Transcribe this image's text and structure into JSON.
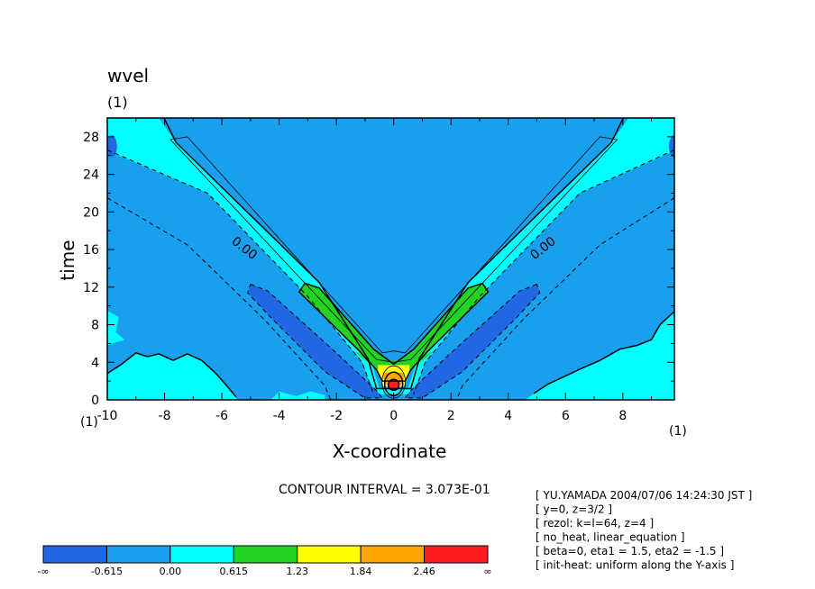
{
  "chart_data": {
    "type": "heatmap",
    "title": "wvel",
    "title_unit": "(1)",
    "xlabel": "X-coordinate",
    "ylabel": "time",
    "x_unit": "(1)",
    "y_unit": "(1)",
    "xlim": [
      -10,
      9.8
    ],
    "ylim": [
      0,
      30
    ],
    "x_ticks": [
      -10,
      -8,
      -6,
      -4,
      -2,
      0,
      2,
      4,
      6,
      8
    ],
    "x_tick_labels": [
      "-10",
      "-8",
      "-6",
      "-4",
      "-2",
      "0",
      "2",
      "4",
      "6",
      "8"
    ],
    "y_ticks": [
      0,
      4,
      8,
      12,
      16,
      20,
      24,
      28
    ],
    "y_tick_labels": [
      "0",
      "4",
      "8",
      "12",
      "16",
      "20",
      "24",
      "28"
    ],
    "contour_labels": [
      {
        "text": "0.00",
        "x": -5.3,
        "y": 15.8,
        "angle": 38
      },
      {
        "text": "0.00",
        "x": 5.3,
        "y": 15.8,
        "angle": -38
      }
    ],
    "contour_interval_text": "CONTOUR INTERVAL = 3.073E-01",
    "colorbar": {
      "boundaries": [
        "-∞",
        "-0.615",
        "0.00",
        "0.615",
        "1.23",
        "1.84",
        "2.46",
        "∞"
      ],
      "colors": [
        "#2166e3",
        "#18a0ee",
        "#00ffff",
        "#22d322",
        "#ffff00",
        "#ffa500",
        "#ff1e1e"
      ]
    },
    "colors": {
      "bin_neg2": "#2166e3",
      "bin_neg1": "#18a0ee",
      "bin_0": "#00ffff",
      "bin_1": "#22d322",
      "bin_2": "#ffff00",
      "bin_3": "#ffa500",
      "bin_4": "#ff1e1e"
    }
  },
  "info_lines": [
    "[ YU.YAMADA 2004/07/06 14:24:30 JST ]",
    "[ y=0, z=3/2 ]",
    "[ rezol: k=l=64, z=4 ]",
    "[ no_heat, linear_equation ]",
    "[ beta=0, eta1 = 1.5, eta2 = -1.5 ]",
    "[ init-heat: uniform along the Y-axis ]"
  ]
}
